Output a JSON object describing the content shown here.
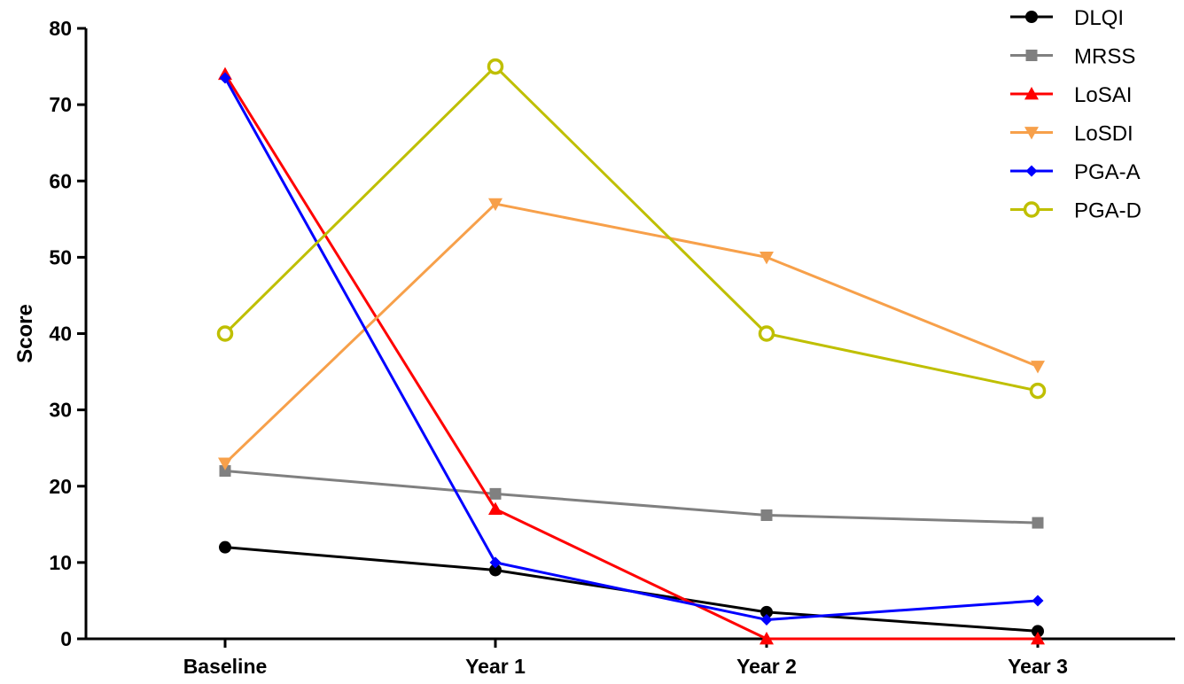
{
  "chart_data": {
    "type": "line",
    "title": "",
    "xlabel": "",
    "ylabel": "Score",
    "categories": [
      "Baseline",
      "Year 1",
      "Year 2",
      "Year 3"
    ],
    "ylim": [
      0,
      80
    ],
    "yticks": [
      0,
      10,
      20,
      30,
      40,
      50,
      60,
      70,
      80
    ],
    "grid": false,
    "legend_position": "top-right",
    "series": [
      {
        "name": "DLQI",
        "values": [
          12,
          9,
          3.5,
          1
        ],
        "color": "#000000",
        "marker": "circle"
      },
      {
        "name": "MRSS",
        "values": [
          22,
          19,
          16.2,
          15.2
        ],
        "color": "#808080",
        "marker": "square"
      },
      {
        "name": "LoSAI",
        "values": [
          74,
          17,
          0,
          0
        ],
        "color": "#ff0000",
        "marker": "triangle-up"
      },
      {
        "name": "LoSDI",
        "values": [
          23,
          57,
          50,
          35.7
        ],
        "color": "#f7a04a",
        "marker": "triangle-down"
      },
      {
        "name": "PGA-A",
        "values": [
          73.5,
          10,
          2.5,
          5
        ],
        "color": "#0000ff",
        "marker": "diamond"
      },
      {
        "name": "PGA-D",
        "values": [
          40,
          75,
          40,
          32.5
        ],
        "color": "#bfbf00",
        "marker": "open-circle"
      }
    ]
  }
}
